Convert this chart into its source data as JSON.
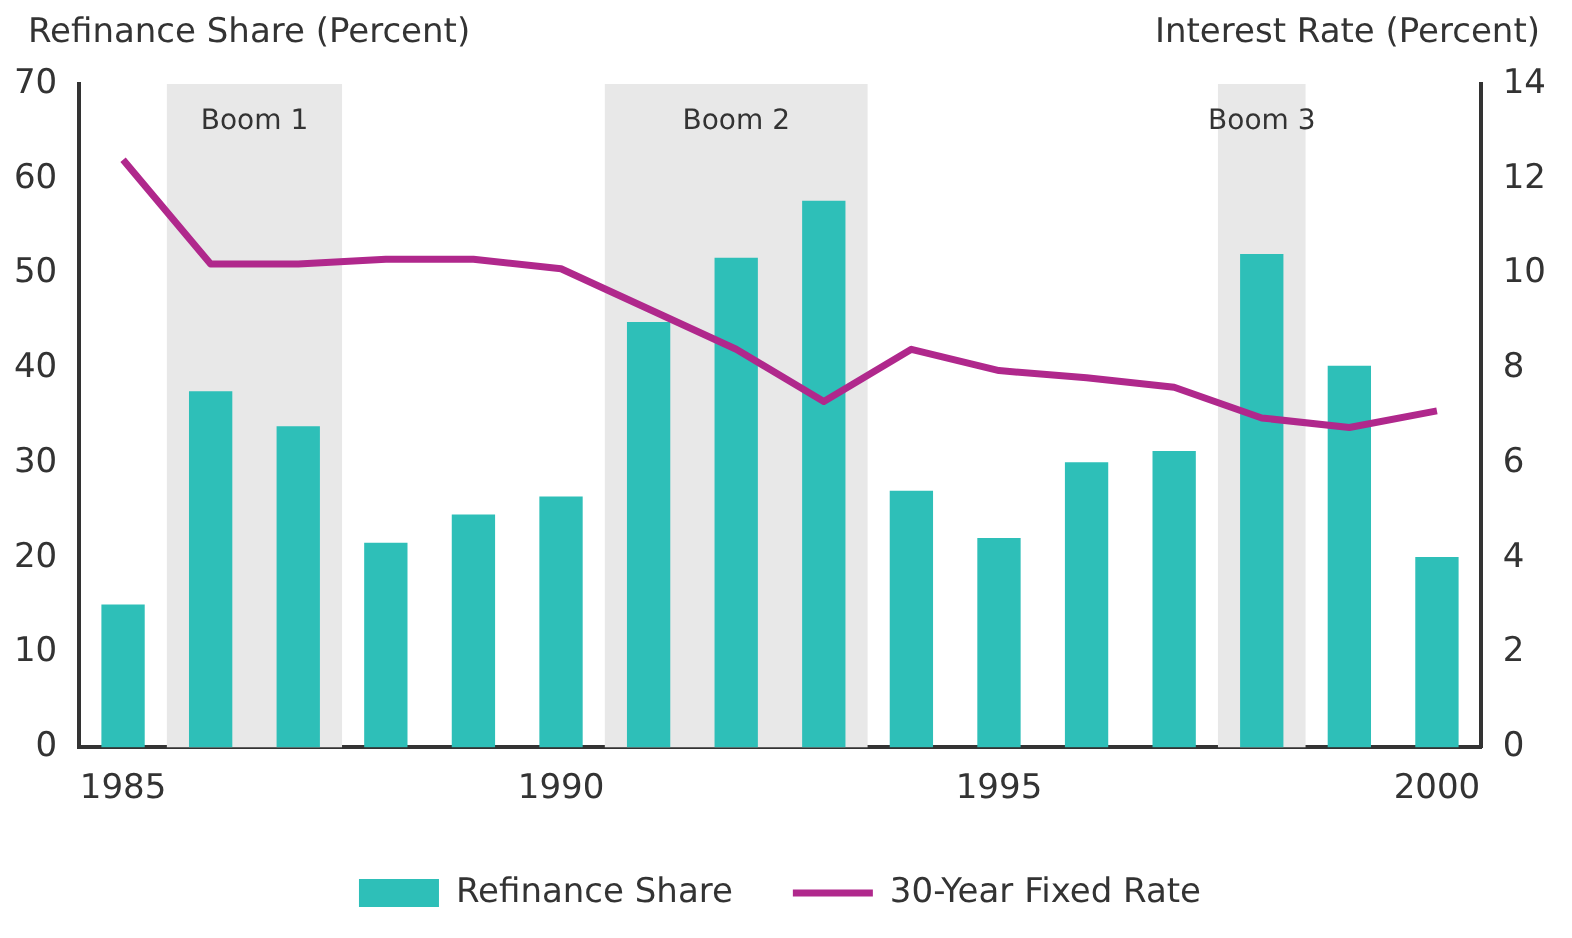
{
  "chart_data": {
    "type": "bar",
    "ylabel": "Refinance Share (Percent)",
    "y2label": "Interest Rate (Percent)",
    "x": [
      1985,
      1986,
      1987,
      1988,
      1989,
      1990,
      1991,
      1992,
      1993,
      1994,
      1995,
      1996,
      1997,
      1998,
      1999,
      2000
    ],
    "series": [
      {
        "name": "Refinance Share",
        "color": "#2ebfb8",
        "values": [
          15,
          37.5,
          33.8,
          21.5,
          24.5,
          26.4,
          44.8,
          51.6,
          57.6,
          27,
          22,
          30,
          31.2,
          52,
          40.2,
          20
        ]
      },
      {
        "name": "30-Year Fixed Rate",
        "type": "line",
        "axis": "y2",
        "color": "#b0288c",
        "values": [
          12.4,
          10.2,
          10.2,
          10.3,
          10.3,
          10.1,
          9.25,
          8.4,
          7.3,
          8.4,
          7.95,
          7.8,
          7.6,
          6.95,
          6.75,
          7.1
        ]
      }
    ],
    "xlim": [
      1984.5,
      2000.5
    ],
    "xticks": [
      1985,
      1990,
      1995,
      2000
    ],
    "ylim": [
      0,
      70
    ],
    "yticks": [
      0,
      10,
      20,
      30,
      40,
      50,
      60,
      70
    ],
    "y2lim": [
      0,
      14
    ],
    "y2ticks": [
      0,
      2,
      4,
      6,
      8,
      10,
      12,
      14
    ],
    "bands": [
      {
        "axis": "x",
        "from": 1985.5,
        "to": 1987.5,
        "label": "Boom 1",
        "color": "#e8e8e8"
      },
      {
        "axis": "x",
        "from": 1990.5,
        "to": 1993.5,
        "label": "Boom 2",
        "color": "#e8e8e8"
      },
      {
        "axis": "x",
        "from": 1997.5,
        "to": 1998.5,
        "label": "Boom 3",
        "color": "#e8e8e8"
      }
    ],
    "grid": false,
    "legend": "bottom",
    "marker": "none",
    "line_style": "solid"
  }
}
